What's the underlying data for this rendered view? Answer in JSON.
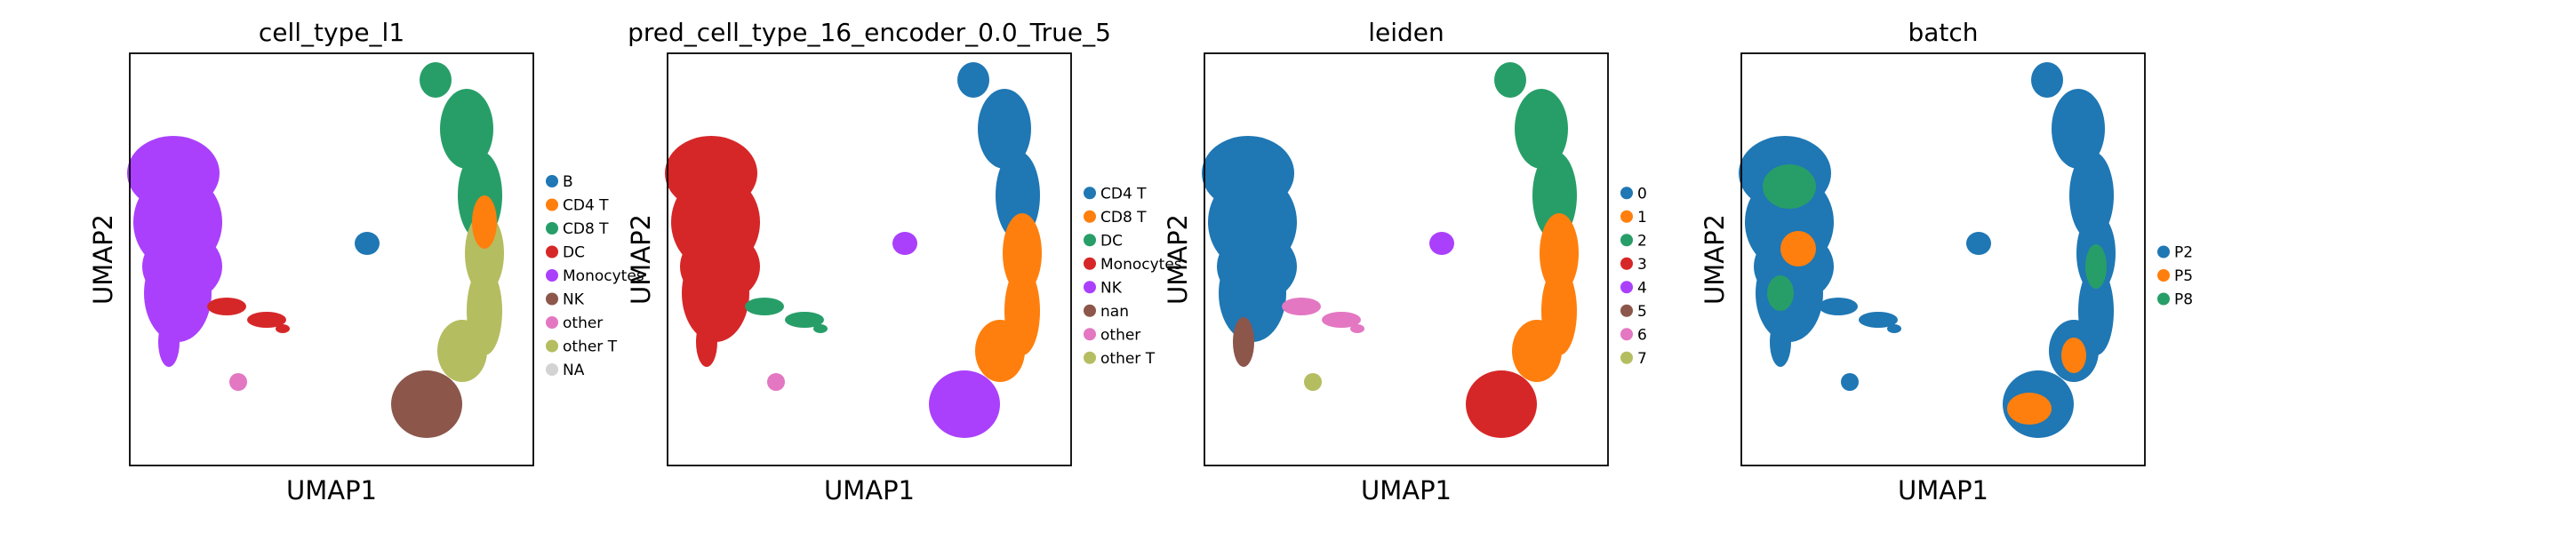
{
  "figure": {
    "panels": [
      {
        "title": "cell_type_l1",
        "xlabel": "UMAP1",
        "ylabel": "UMAP2",
        "legend": [
          {
            "label": "B",
            "color": "#1f77b4"
          },
          {
            "label": "CD4 T",
            "color": "#ff7f0e"
          },
          {
            "label": "CD8 T",
            "color": "#279e68"
          },
          {
            "label": "DC",
            "color": "#d62728"
          },
          {
            "label": "Monocytes",
            "color": "#aa40fc"
          },
          {
            "label": "NK",
            "color": "#8c564b"
          },
          {
            "label": "other",
            "color": "#e377c2"
          },
          {
            "label": "other T",
            "color": "#b5bd61"
          },
          {
            "label": "NA",
            "color": "#d3d3d3"
          }
        ]
      },
      {
        "title": "pred_cell_type_16_encoder_0.0_True_5",
        "xlabel": "UMAP1",
        "ylabel": "UMAP2",
        "legend": [
          {
            "label": "CD4 T",
            "color": "#1f77b4"
          },
          {
            "label": "CD8 T",
            "color": "#ff7f0e"
          },
          {
            "label": "DC",
            "color": "#279e68"
          },
          {
            "label": "Monocytes",
            "color": "#d62728"
          },
          {
            "label": "NK",
            "color": "#aa40fc"
          },
          {
            "label": "nan",
            "color": "#8c564b"
          },
          {
            "label": "other",
            "color": "#e377c2"
          },
          {
            "label": "other T",
            "color": "#b5bd61"
          }
        ]
      },
      {
        "title": "leiden",
        "xlabel": "UMAP1",
        "ylabel": "UMAP2",
        "legend": [
          {
            "label": "0",
            "color": "#1f77b4"
          },
          {
            "label": "1",
            "color": "#ff7f0e"
          },
          {
            "label": "2",
            "color": "#279e68"
          },
          {
            "label": "3",
            "color": "#d62728"
          },
          {
            "label": "4",
            "color": "#aa40fc"
          },
          {
            "label": "5",
            "color": "#8c564b"
          },
          {
            "label": "6",
            "color": "#e377c2"
          },
          {
            "label": "7",
            "color": "#b5bd61"
          }
        ]
      },
      {
        "title": "batch",
        "xlabel": "UMAP1",
        "ylabel": "UMAP2",
        "legend": [
          {
            "label": "P2",
            "color": "#1f77b4"
          },
          {
            "label": "P5",
            "color": "#ff7f0e"
          },
          {
            "label": "P8",
            "color": "#279e68"
          }
        ]
      }
    ]
  },
  "chart_data": [
    {
      "type": "scatter",
      "title": "cell_type_l1",
      "xlabel": "UMAP1",
      "ylabel": "UMAP2",
      "grid": false,
      "legend_placement": "right",
      "series": [
        {
          "name": "B"
        },
        {
          "name": "CD4 T"
        },
        {
          "name": "CD8 T"
        },
        {
          "name": "DC"
        },
        {
          "name": "Monocytes"
        },
        {
          "name": "NK"
        },
        {
          "name": "other"
        },
        {
          "name": "other T"
        },
        {
          "name": "NA"
        }
      ]
    },
    {
      "type": "scatter",
      "title": "pred_cell_type_16_encoder_0.0_True_5",
      "xlabel": "UMAP1",
      "ylabel": "UMAP2",
      "grid": false,
      "legend_placement": "right",
      "series": [
        {
          "name": "CD4 T"
        },
        {
          "name": "CD8 T"
        },
        {
          "name": "DC"
        },
        {
          "name": "Monocytes"
        },
        {
          "name": "NK"
        },
        {
          "name": "nan"
        },
        {
          "name": "other"
        },
        {
          "name": "other T"
        }
      ]
    },
    {
      "type": "scatter",
      "title": "leiden",
      "xlabel": "UMAP1",
      "ylabel": "UMAP2",
      "grid": false,
      "legend_placement": "right",
      "series": [
        {
          "name": "0"
        },
        {
          "name": "1"
        },
        {
          "name": "2"
        },
        {
          "name": "3"
        },
        {
          "name": "4"
        },
        {
          "name": "5"
        },
        {
          "name": "6"
        },
        {
          "name": "7"
        }
      ]
    },
    {
      "type": "scatter",
      "title": "batch",
      "xlabel": "UMAP1",
      "ylabel": "UMAP2",
      "grid": false,
      "legend_placement": "right",
      "series": [
        {
          "name": "P2"
        },
        {
          "name": "P5"
        },
        {
          "name": "P8"
        }
      ]
    }
  ]
}
